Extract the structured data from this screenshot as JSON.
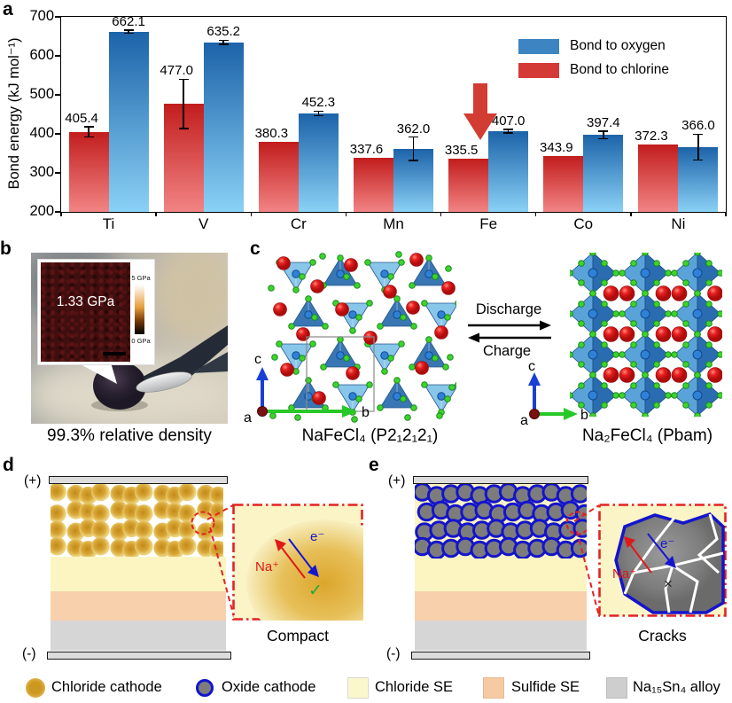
{
  "panels": {
    "a": "a",
    "b": "b",
    "c": "c",
    "d": "d",
    "e": "e"
  },
  "chart_data": {
    "type": "bar",
    "title": "",
    "xlabel": "",
    "ylabel": "Bond energy (kJ mol⁻¹)",
    "ylim": [
      200,
      700
    ],
    "yticks": [
      200,
      300,
      400,
      500,
      600,
      700
    ],
    "categories": [
      "Ti",
      "V",
      "Cr",
      "Mn",
      "Fe",
      "Co",
      "Ni"
    ],
    "series": [
      {
        "name": "Bond to oxygen",
        "color": "#3c85c2",
        "side": "right",
        "values": [
          662.1,
          635.2,
          452.3,
          362.0,
          407.0,
          397.4,
          366.0
        ],
        "errors": [
          4,
          5,
          6,
          30,
          5,
          10,
          33
        ]
      },
      {
        "name": "Bond to chlorine",
        "color": "#d43a35",
        "side": "left",
        "values": [
          405.4,
          477.0,
          380.3,
          337.6,
          335.5,
          343.9,
          372.3
        ],
        "errors": [
          13,
          63,
          0,
          0,
          0,
          0,
          0
        ]
      }
    ],
    "legend_position": "top-right",
    "grid": false,
    "annotation": {
      "type": "down-arrow",
      "target": "Fe",
      "color": "#d23c32"
    }
  },
  "panel_b": {
    "inset_value": "1.33 GPa",
    "scale_top": "5 GPa",
    "scale_bottom": "0 GPa",
    "caption": "99.3% relative density"
  },
  "panel_c": {
    "left_caption": "NaFeCl₄ (P2₁2₁2₁)",
    "right_caption": "Na₂FeCl₄ (Pbam)",
    "forward_label": "Discharge",
    "reverse_label": "Charge",
    "axes": {
      "up": "c",
      "right": "b",
      "origin": "a"
    }
  },
  "panel_d": {
    "positive_terminal": "(+)",
    "negative_terminal": "(-)",
    "inset": {
      "ion_label": "Na⁺",
      "electron_label": "e⁻",
      "check": "✓"
    },
    "caption": "Compact"
  },
  "panel_e": {
    "positive_terminal": "(+)",
    "negative_terminal": "(-)",
    "inset": {
      "ion_label": "Na⁺",
      "electron_label": "e⁻",
      "cross": "×"
    },
    "caption": "Cracks"
  },
  "legend": {
    "items": [
      {
        "label": "Chloride cathode",
        "swatch": "gold-circle",
        "color": "#d8a430"
      },
      {
        "label": "Oxide cathode",
        "swatch": "gray-circle-blue-ring",
        "color": "#7d7d7d",
        "ring": "#1414cc"
      },
      {
        "label": "Chloride SE",
        "swatch": "square",
        "color": "#fbf7cd"
      },
      {
        "label": "Sulfide SE",
        "swatch": "square",
        "color": "#f6cba4"
      },
      {
        "label": "Na₁₅Sn₄ alloy",
        "swatch": "square",
        "color": "#cecece"
      }
    ]
  },
  "colors": {
    "oxygen_bar_top": "#1c63a9",
    "oxygen_bar_bottom": "#8ad1f6",
    "chlorine_bar_top": "#c21d1d",
    "chlorine_bar_bottom": "#f28484",
    "chloride_se": "#fcf5c2",
    "sulfide_se": "#f8d0ac",
    "alloy": "#d6d6d6",
    "inset_border": "#e32222"
  }
}
